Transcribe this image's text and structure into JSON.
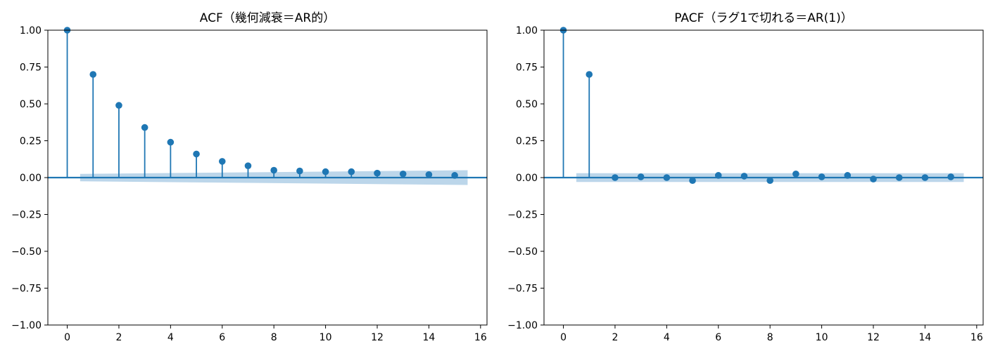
{
  "chart_data": [
    {
      "type": "stem",
      "title": "ACF（幾何減衰＝AR的）",
      "xlabel": "",
      "ylabel": "",
      "xlim": [
        -0.75,
        16.25
      ],
      "ylim": [
        -1.0,
        1.0
      ],
      "x_ticks": [
        0,
        2,
        4,
        6,
        8,
        10,
        12,
        14,
        16
      ],
      "y_ticks": [
        1.0,
        0.75,
        0.5,
        0.25,
        0.0,
        -0.25,
        -0.5,
        -0.75,
        -1.0
      ],
      "x_tick_labels": [
        "0",
        "2",
        "4",
        "6",
        "8",
        "10",
        "12",
        "14",
        "16"
      ],
      "y_tick_labels": [
        "1.00",
        "0.75",
        "0.50",
        "0.25",
        "0.00",
        "−0.25",
        "−0.50",
        "−0.75",
        "−1.00"
      ],
      "lags": [
        0,
        1,
        2,
        3,
        4,
        5,
        6,
        7,
        8,
        9,
        10,
        11,
        12,
        13,
        14,
        15
      ],
      "values": [
        1.0,
        0.7,
        0.49,
        0.34,
        0.24,
        0.16,
        0.11,
        0.08,
        0.05,
        0.045,
        0.04,
        0.04,
        0.03,
        0.025,
        0.02,
        0.015
      ],
      "confidence_band": {
        "start": 0.5,
        "end": 15.5,
        "lower_start": -0.025,
        "lower_end": -0.05,
        "upper_start": 0.025,
        "upper_end": 0.05
      },
      "grid": false,
      "color": "#1f77b4",
      "band_color": "#bcd6ea"
    },
    {
      "type": "stem",
      "title": "PACF（ラグ1で切れる＝AR(1)）",
      "xlabel": "",
      "ylabel": "",
      "xlim": [
        -0.75,
        16.25
      ],
      "ylim": [
        -1.0,
        1.0
      ],
      "x_ticks": [
        0,
        2,
        4,
        6,
        8,
        10,
        12,
        14,
        16
      ],
      "y_ticks": [
        1.0,
        0.75,
        0.5,
        0.25,
        0.0,
        -0.25,
        -0.5,
        -0.75,
        -1.0
      ],
      "x_tick_labels": [
        "0",
        "2",
        "4",
        "6",
        "8",
        "10",
        "12",
        "14",
        "16"
      ],
      "y_tick_labels": [
        "1.00",
        "0.75",
        "0.50",
        "0.25",
        "0.00",
        "−0.25",
        "−0.50",
        "−0.75",
        "−1.00"
      ],
      "lags": [
        0,
        1,
        2,
        3,
        4,
        5,
        6,
        7,
        8,
        9,
        10,
        11,
        12,
        13,
        14,
        15
      ],
      "values": [
        1.0,
        0.7,
        0.0,
        0.005,
        0.0,
        -0.02,
        0.015,
        0.01,
        -0.02,
        0.025,
        0.005,
        0.015,
        -0.01,
        0.0,
        0.0,
        0.005
      ],
      "confidence_band": {
        "start": 0.5,
        "end": 15.5,
        "lower_start": -0.03,
        "lower_end": -0.03,
        "upper_start": 0.03,
        "upper_end": 0.03
      },
      "grid": false,
      "color": "#1f77b4",
      "band_color": "#bcd6ea"
    }
  ]
}
